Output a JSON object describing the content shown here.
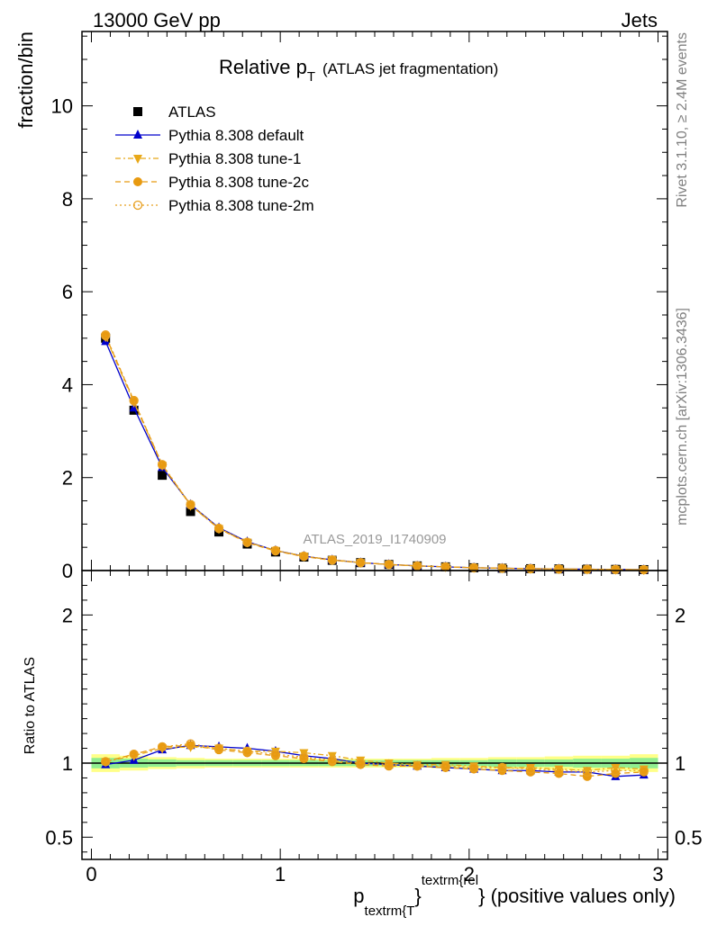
{
  "header": {
    "left": "13000 GeV pp",
    "right": "Jets"
  },
  "side": {
    "rivet": "Rivet 3.1.10, ≥ 2.4M events",
    "mcplots": "mcplots.cern.ch [arXiv:1306.3436]"
  },
  "colors": {
    "data": "#000000",
    "default": "#0000cc",
    "tune1": "#e8a818",
    "tune2c": "#e89a10",
    "tune2m": "#e8a020",
    "band_outer": "#ffff88",
    "band_inner": "#90ee90",
    "refline": "#000000"
  },
  "chart_data": [
    {
      "type": "line",
      "title": "Relative p",
      "title_sub": "T",
      "title_note": "(ATLAS jet fragmentation)",
      "ylabel": "fraction/bin",
      "watermark": "ATLAS_2019_I1740909",
      "xlim": [
        -0.05,
        3.05
      ],
      "ylim": [
        0,
        11.6
      ],
      "yticks": [
        0,
        2,
        4,
        6,
        8,
        10
      ],
      "legend_position": "top-left",
      "legend": [
        {
          "label": "ATLAS",
          "key": "data"
        },
        {
          "label": "Pythia 8.308 default",
          "key": "default"
        },
        {
          "label": "Pythia 8.308 tune-1",
          "key": "tune1"
        },
        {
          "label": "Pythia 8.308 tune-2c",
          "key": "tune2c"
        },
        {
          "label": "Pythia 8.308 tune-2m",
          "key": "tune2m"
        }
      ],
      "x": [
        0.075,
        0.225,
        0.375,
        0.525,
        0.675,
        0.825,
        0.975,
        1.125,
        1.275,
        1.425,
        1.575,
        1.725,
        1.875,
        2.025,
        2.175,
        2.325,
        2.475,
        2.625,
        2.775,
        2.925
      ],
      "series": [
        {
          "name": "ATLAS",
          "key": "data",
          "values": [
            5.0,
            3.45,
            2.05,
            1.27,
            0.83,
            0.57,
            0.4,
            0.29,
            0.22,
            0.17,
            0.13,
            0.1,
            0.08,
            0.06,
            0.05,
            0.04,
            0.035,
            0.03,
            0.025,
            0.02
          ]
        },
        {
          "name": "Pythia 8.308 default",
          "key": "default",
          "values": [
            4.93,
            3.5,
            2.22,
            1.42,
            0.92,
            0.62,
            0.43,
            0.31,
            0.23,
            0.17,
            0.13,
            0.1,
            0.08,
            0.06,
            0.05,
            0.04,
            0.033,
            0.028,
            0.023,
            0.018
          ]
        },
        {
          "name": "Pythia 8.308 tune-1",
          "key": "tune1",
          "values": [
            5.03,
            3.62,
            2.26,
            1.4,
            0.9,
            0.61,
            0.43,
            0.31,
            0.23,
            0.17,
            0.13,
            0.1,
            0.08,
            0.06,
            0.05,
            0.04,
            0.033,
            0.028,
            0.023,
            0.018
          ]
        },
        {
          "name": "Pythia 8.308 tune-2c",
          "key": "tune2c",
          "values": [
            5.05,
            3.65,
            2.27,
            1.41,
            0.9,
            0.6,
            0.42,
            0.3,
            0.22,
            0.17,
            0.13,
            0.1,
            0.08,
            0.06,
            0.05,
            0.04,
            0.033,
            0.028,
            0.023,
            0.018
          ]
        },
        {
          "name": "Pythia 8.308 tune-2m",
          "key": "tune2m",
          "values": [
            5.07,
            3.66,
            2.28,
            1.42,
            0.91,
            0.61,
            0.43,
            0.31,
            0.23,
            0.17,
            0.13,
            0.1,
            0.08,
            0.06,
            0.05,
            0.04,
            0.033,
            0.028,
            0.023,
            0.018
          ]
        }
      ]
    },
    {
      "type": "line",
      "ylabel": "Ratio to ATLAS",
      "xlabel_main": "p",
      "xlabel_sub": "textrm{T",
      "xlabel_brace": "}",
      "xlabel_sup": "textrm{rel",
      "xlabel_tail": "} (positive values only)",
      "xlim": [
        -0.05,
        3.05
      ],
      "ylim": [
        0.35,
        2.3
      ],
      "xticks": [
        0,
        1,
        2,
        3
      ],
      "yticks": [
        0.5,
        1,
        2
      ],
      "x": [
        0.075,
        0.225,
        0.375,
        0.525,
        0.675,
        0.825,
        0.975,
        1.125,
        1.275,
        1.425,
        1.575,
        1.725,
        1.875,
        2.025,
        2.175,
        2.325,
        2.475,
        2.625,
        2.775,
        2.925
      ],
      "band_outer_halfwidth": [
        0.06,
        0.05,
        0.04,
        0.035,
        0.03,
        0.03,
        0.03,
        0.03,
        0.03,
        0.03,
        0.03,
        0.03,
        0.035,
        0.035,
        0.04,
        0.04,
        0.045,
        0.05,
        0.05,
        0.06
      ],
      "band_inner_halfwidth": [
        0.035,
        0.03,
        0.025,
        0.02,
        0.02,
        0.02,
        0.02,
        0.02,
        0.02,
        0.02,
        0.02,
        0.02,
        0.02,
        0.02,
        0.025,
        0.025,
        0.025,
        0.03,
        0.03,
        0.035
      ],
      "series": [
        {
          "name": "Pythia 8.308 default",
          "key": "default",
          "values": [
            0.99,
            1.02,
            1.09,
            1.12,
            1.11,
            1.1,
            1.08,
            1.05,
            1.03,
            1.0,
            0.99,
            0.98,
            0.97,
            0.96,
            0.95,
            0.95,
            0.94,
            0.94,
            0.91,
            0.92
          ]
        },
        {
          "name": "Pythia 8.308 tune-1",
          "key": "tune1",
          "values": [
            1.01,
            1.05,
            1.1,
            1.11,
            1.1,
            1.08,
            1.08,
            1.07,
            1.05,
            1.02,
            1.0,
            0.99,
            0.99,
            0.98,
            0.97,
            0.97,
            0.96,
            0.95,
            0.97,
            0.96
          ]
        },
        {
          "name": "Pythia 8.308 tune-2c",
          "key": "tune2c",
          "values": [
            1.01,
            1.06,
            1.11,
            1.12,
            1.09,
            1.07,
            1.05,
            1.03,
            1.01,
            0.99,
            0.98,
            0.98,
            0.97,
            0.96,
            0.95,
            0.94,
            0.93,
            0.91,
            0.93,
            0.94
          ]
        },
        {
          "name": "Pythia 8.308 tune-2m",
          "key": "tune2m",
          "values": [
            1.01,
            1.06,
            1.11,
            1.13,
            1.1,
            1.08,
            1.06,
            1.04,
            1.02,
            1.0,
            0.99,
            0.98,
            0.98,
            0.97,
            0.97,
            0.96,
            0.95,
            0.94,
            0.95,
            0.95
          ]
        }
      ]
    }
  ]
}
